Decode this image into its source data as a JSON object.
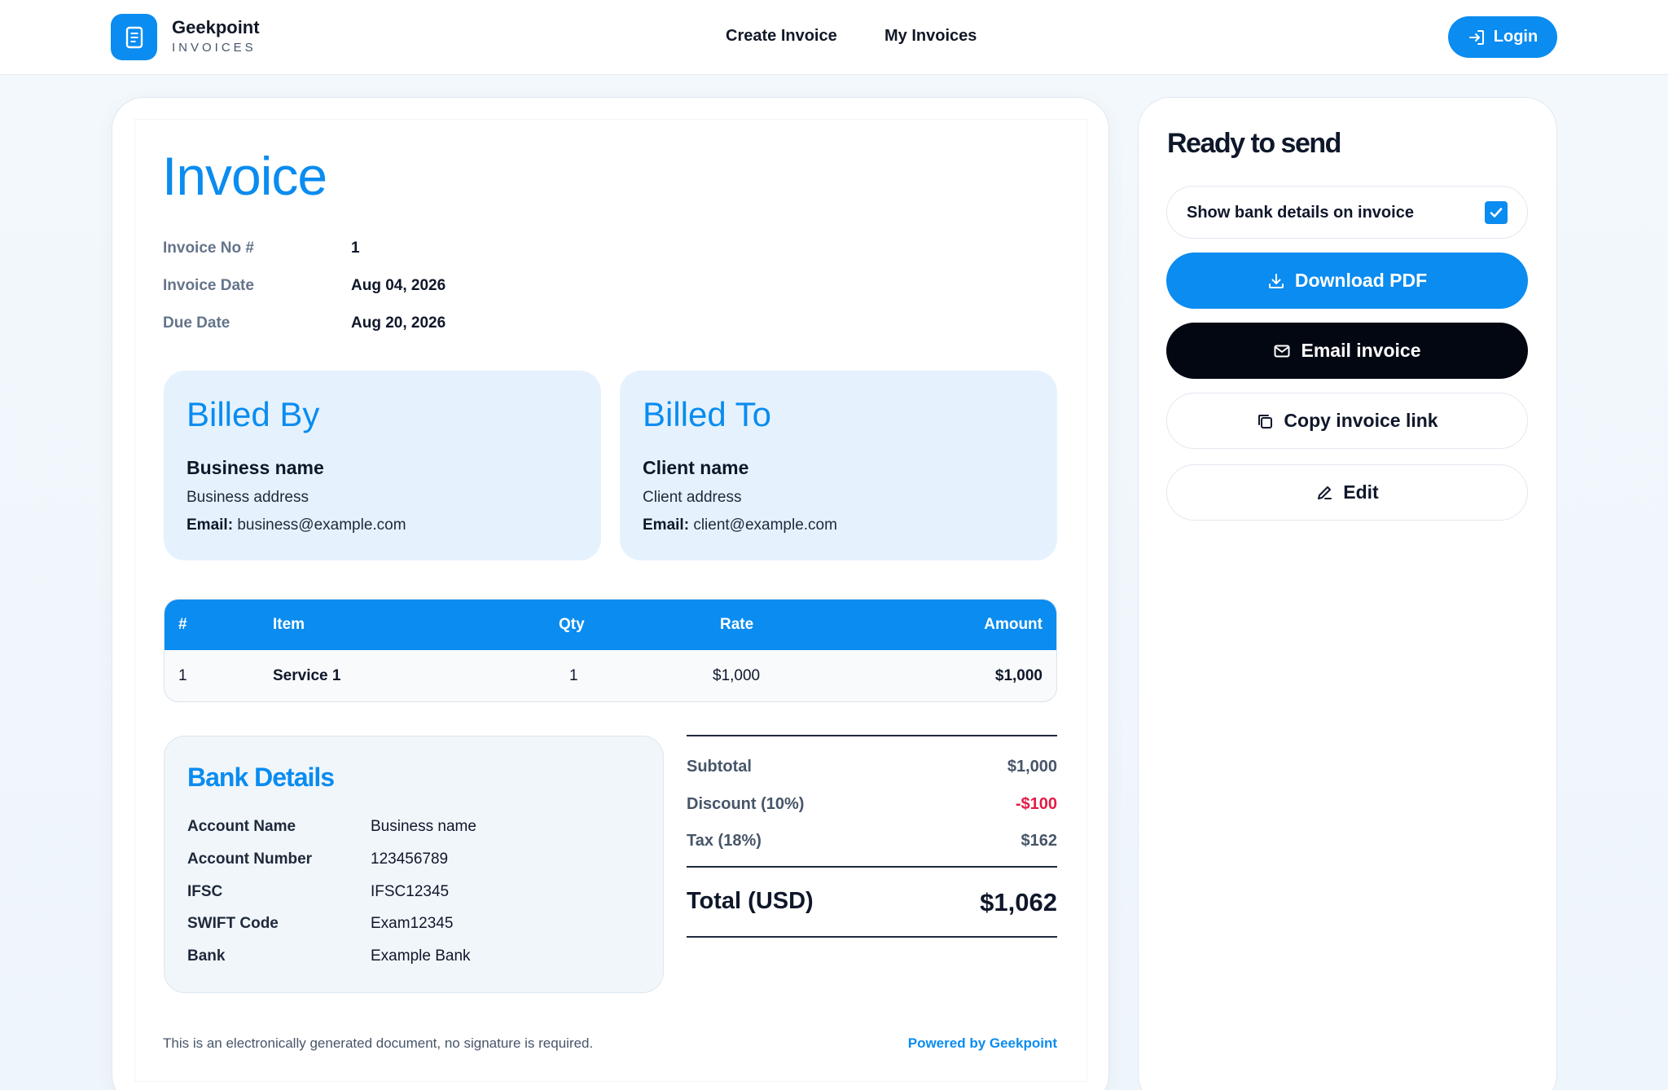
{
  "header": {
    "brand_name": "Geekpoint",
    "brand_sub": "INVOICES",
    "nav": [
      "Create Invoice",
      "My Invoices"
    ],
    "login_label": "Login"
  },
  "invoice": {
    "title": "Invoice",
    "meta": [
      {
        "label": "Invoice No #",
        "value": "1"
      },
      {
        "label": "Invoice Date",
        "value": "Aug 04, 2026"
      },
      {
        "label": "Due Date",
        "value": "Aug 20, 2026"
      }
    ],
    "billed_by": {
      "title": "Billed By",
      "name": "Business name",
      "address": "Business address",
      "email_label": "Email:",
      "email": "business@example.com"
    },
    "billed_to": {
      "title": "Billed To",
      "name": "Client name",
      "address": "Client address",
      "email_label": "Email:",
      "email": "client@example.com"
    },
    "table": {
      "headers": [
        "#",
        "Item",
        "Qty",
        "Rate",
        "Amount"
      ],
      "rows": [
        {
          "num": "1",
          "item": "Service 1",
          "qty": "1",
          "rate": "$1,000",
          "amount": "$1,000"
        }
      ]
    },
    "bank": {
      "title": "Bank Details",
      "rows": [
        {
          "label": "Account Name",
          "value": "Business name"
        },
        {
          "label": "Account Number",
          "value": "123456789"
        },
        {
          "label": "IFSC",
          "value": "IFSC12345"
        },
        {
          "label": "SWIFT Code",
          "value": "Exam12345"
        },
        {
          "label": "Bank",
          "value": "Example Bank"
        }
      ]
    },
    "totals": {
      "subtotal_label": "Subtotal",
      "subtotal": "$1,000",
      "discount_label": "Discount (10%)",
      "discount": "-$100",
      "tax_label": "Tax (18%)",
      "tax": "$162",
      "total_label": "Total (USD)",
      "total": "$1,062"
    },
    "footer_note": "This is an electronically generated document, no signature is required.",
    "powered_by": "Powered by Geekpoint"
  },
  "side": {
    "title": "Ready to send",
    "toggle_label": "Show bank details on invoice",
    "toggle_checked": true,
    "download_label": "Download PDF",
    "email_label": "Email invoice",
    "copy_label": "Copy invoice link",
    "edit_label": "Edit"
  },
  "colors": {
    "accent": "#0a8cf0",
    "discount": "#e11d48",
    "dark_button": "#030712",
    "party_bg": "#e5f2fd"
  }
}
